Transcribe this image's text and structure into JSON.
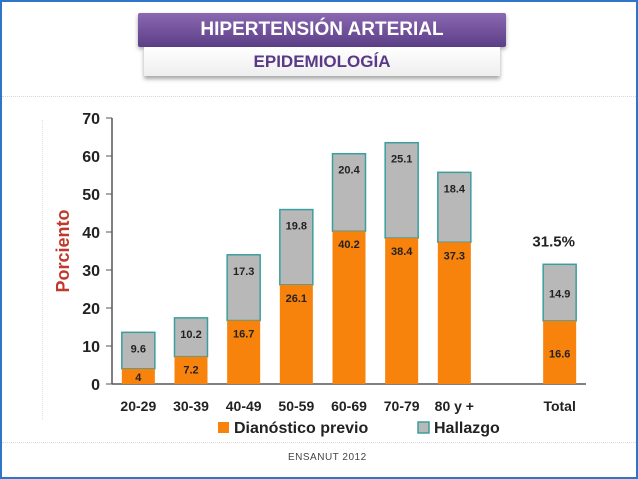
{
  "header": {
    "title": "HIPERTENSIÓN ARTERIAL",
    "subtitle": "EPIDEMIOLOGÍA"
  },
  "footer": {
    "source": "ENSANUT 2012"
  },
  "colors": {
    "title_bg": "#6b4c9a",
    "diag": "#f7820c",
    "hall": "#b8b8b8",
    "hall_border": "#3b9e9e",
    "axis_label": "#c0392b",
    "frame": "#2f75c8"
  },
  "chart_data": {
    "type": "bar",
    "stacked": true,
    "ylabel": "Porciento",
    "ylim": [
      0,
      70
    ],
    "yticks": [
      0,
      10,
      20,
      30,
      40,
      50,
      60,
      70
    ],
    "categories": [
      "20-29",
      "30-39",
      "40-49",
      "50-59",
      "60-69",
      "70-79",
      "80 y +",
      "",
      "Total"
    ],
    "series": [
      {
        "name": "Dianóstico previo",
        "values": [
          4,
          7.2,
          16.7,
          26.1,
          40.2,
          38.4,
          37.3,
          null,
          16.6
        ],
        "labels": [
          "4",
          "7.2",
          "16.7",
          "26.1",
          "40.2",
          "38.4",
          "37.3",
          "",
          "16.6"
        ]
      },
      {
        "name": "Hallazgo",
        "values": [
          9.6,
          10.2,
          17.3,
          19.8,
          20.4,
          25.1,
          18.4,
          null,
          14.9
        ],
        "labels": [
          "9.6",
          "10.2",
          "17.3",
          "19.8",
          "20.4",
          "25.1",
          "18.4",
          "",
          "14.9"
        ]
      }
    ],
    "annotations": [
      {
        "category": "Total",
        "text": "31.5%"
      }
    ],
    "legend": "bottom"
  }
}
